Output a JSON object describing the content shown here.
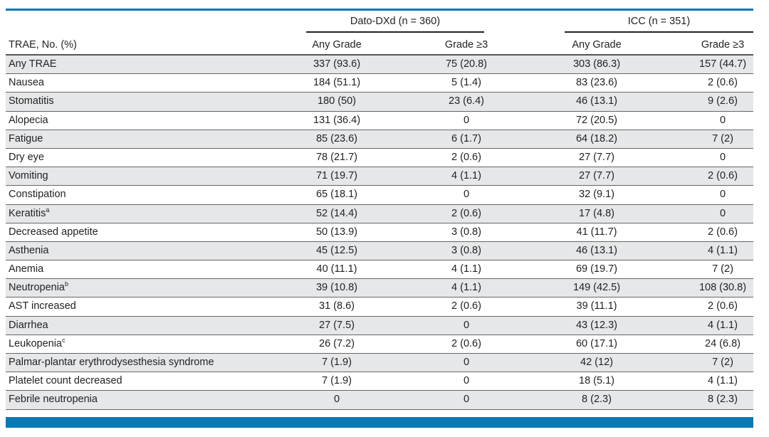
{
  "table": {
    "group_headers": [
      "Dato-DXd (n = 360)",
      "ICC (n = 351)"
    ],
    "columns": [
      "TRAE, No. (%)",
      "Any Grade",
      "Grade ≥3",
      "Any Grade",
      "Grade ≥3"
    ],
    "rows": [
      {
        "label": "Any TRAE",
        "sup": "",
        "values": [
          "337 (93.6)",
          "75 (20.8)",
          "303 (86.3)",
          "157 (44.7)"
        ]
      },
      {
        "label": "Nausea",
        "sup": "",
        "values": [
          "184 (51.1)",
          "5 (1.4)",
          "83 (23.6)",
          "2 (0.6)"
        ]
      },
      {
        "label": "Stomatitis",
        "sup": "",
        "values": [
          "180 (50)",
          "23 (6.4)",
          "46 (13.1)",
          "9 (2.6)"
        ]
      },
      {
        "label": "Alopecia",
        "sup": "",
        "values": [
          "131 (36.4)",
          "0",
          "72 (20.5)",
          "0"
        ]
      },
      {
        "label": "Fatigue",
        "sup": "",
        "values": [
          "85 (23.6)",
          "6 (1.7)",
          "64 (18.2)",
          "7 (2)"
        ]
      },
      {
        "label": "Dry eye",
        "sup": "",
        "values": [
          "78 (21.7)",
          "2 (0.6)",
          "27 (7.7)",
          "0"
        ]
      },
      {
        "label": "Vomiting",
        "sup": "",
        "values": [
          "71 (19.7)",
          "4 (1.1)",
          "27 (7.7)",
          "2 (0.6)"
        ]
      },
      {
        "label": "Constipation",
        "sup": "",
        "values": [
          "65 (18.1)",
          "0",
          "32 (9.1)",
          "0"
        ]
      },
      {
        "label": "Keratitis",
        "sup": "a",
        "values": [
          "52 (14.4)",
          "2 (0.6)",
          "17 (4.8)",
          "0"
        ]
      },
      {
        "label": "Decreased appetite",
        "sup": "",
        "values": [
          "50 (13.9)",
          "3 (0.8)",
          "41 (11.7)",
          "2 (0.6)"
        ]
      },
      {
        "label": "Asthenia",
        "sup": "",
        "values": [
          "45 (12.5)",
          "3 (0.8)",
          "46 (13.1)",
          "4 (1.1)"
        ]
      },
      {
        "label": "Anemia",
        "sup": "",
        "values": [
          "40 (11.1)",
          "4 (1.1)",
          "69 (19.7)",
          "7 (2)"
        ]
      },
      {
        "label": "Neutropenia",
        "sup": "b",
        "values": [
          "39 (10.8)",
          "4 (1.1)",
          "149 (42.5)",
          "108 (30.8)"
        ]
      },
      {
        "label": "AST increased",
        "sup": "",
        "values": [
          "31 (8.6)",
          "2 (0.6)",
          "39 (11.1)",
          "2 (0.6)"
        ]
      },
      {
        "label": "Diarrhea",
        "sup": "",
        "values": [
          "27 (7.5)",
          "0",
          "43 (12.3)",
          "4 (1.1)"
        ]
      },
      {
        "label": "Leukopenia",
        "sup": "c",
        "values": [
          "26 (7.2)",
          "2 (0.6)",
          "60 (17.1)",
          "24 (6.8)"
        ]
      },
      {
        "label": "Palmar-plantar erythrodysesthesia syndrome",
        "sup": "",
        "values": [
          "7 (1.9)",
          "0",
          "42 (12)",
          "7 (2)"
        ]
      },
      {
        "label": "Platelet count decreased",
        "sup": "",
        "values": [
          "7 (1.9)",
          "0",
          "18 (5.1)",
          "4 (1.1)"
        ]
      },
      {
        "label": "Febrile neutropenia",
        "sup": "",
        "values": [
          "0",
          "0",
          "8 (2.3)",
          "8 (2.3)"
        ]
      }
    ]
  },
  "colors": {
    "accent": "#0a78b4",
    "row_shade": "#e6e7e9"
  }
}
